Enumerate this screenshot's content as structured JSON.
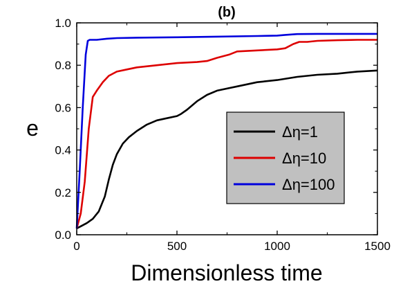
{
  "chart_data": {
    "type": "line",
    "title": "(b)",
    "xlabel": "Dimensionless time",
    "ylabel": "e",
    "xlim": [
      0,
      1500
    ],
    "ylim": [
      0.0,
      1.0
    ],
    "x_ticks": [
      0,
      500,
      1000,
      1500
    ],
    "x_tick_labels": [
      "0",
      "500",
      "1000",
      "1500"
    ],
    "y_ticks": [
      0.0,
      0.2,
      0.4,
      0.6,
      0.8,
      1.0
    ],
    "y_tick_labels": [
      "0.0",
      "0.2",
      "0.4",
      "0.6",
      "0.8",
      "1.0"
    ],
    "grid": false,
    "legend_position": "center-right",
    "series": [
      {
        "name": "Δη=1",
        "color": "#000000",
        "x": [
          0,
          20,
          50,
          80,
          110,
          140,
          160,
          180,
          200,
          230,
          260,
          300,
          350,
          400,
          450,
          500,
          520,
          550,
          600,
          650,
          700,
          800,
          900,
          1000,
          1100,
          1200,
          1300,
          1400,
          1500
        ],
        "y": [
          0.03,
          0.04,
          0.055,
          0.075,
          0.11,
          0.18,
          0.26,
          0.33,
          0.38,
          0.43,
          0.46,
          0.49,
          0.52,
          0.54,
          0.55,
          0.56,
          0.57,
          0.59,
          0.63,
          0.66,
          0.68,
          0.7,
          0.72,
          0.73,
          0.745,
          0.755,
          0.76,
          0.77,
          0.775
        ]
      },
      {
        "name": "Δη=10",
        "color": "#dd0000",
        "x": [
          0,
          20,
          40,
          60,
          80,
          100,
          130,
          160,
          200,
          250,
          300,
          400,
          500,
          600,
          650,
          700,
          760,
          800,
          900,
          1000,
          1040,
          1080,
          1110,
          1150,
          1200,
          1300,
          1400,
          1500
        ],
        "y": [
          0.03,
          0.1,
          0.25,
          0.5,
          0.65,
          0.68,
          0.72,
          0.75,
          0.77,
          0.78,
          0.79,
          0.8,
          0.81,
          0.815,
          0.82,
          0.835,
          0.85,
          0.865,
          0.87,
          0.875,
          0.88,
          0.9,
          0.91,
          0.91,
          0.915,
          0.918,
          0.92,
          0.92
        ]
      },
      {
        "name": "Δη=100",
        "color": "#0000dd",
        "x": [
          0,
          15,
          30,
          45,
          55,
          65,
          100,
          150,
          200,
          300,
          500,
          700,
          900,
          1000,
          1040,
          1100,
          1200,
          1300,
          1400,
          1500
        ],
        "y": [
          0.03,
          0.3,
          0.6,
          0.85,
          0.915,
          0.92,
          0.92,
          0.925,
          0.928,
          0.93,
          0.932,
          0.935,
          0.938,
          0.94,
          0.943,
          0.947,
          0.948,
          0.948,
          0.948,
          0.948
        ]
      }
    ]
  }
}
